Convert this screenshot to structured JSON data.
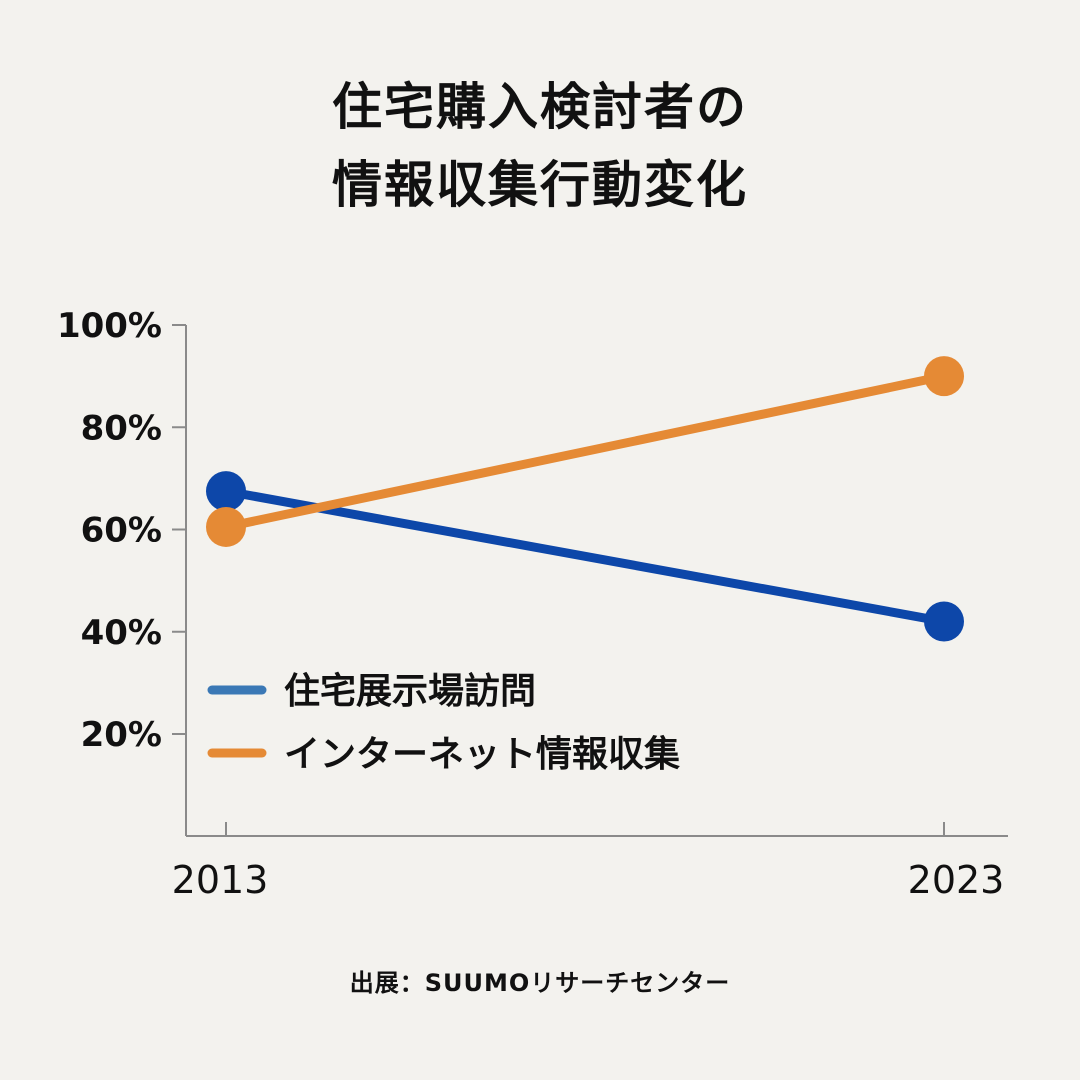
{
  "chart_data": {
    "type": "line",
    "title": [
      "住宅購入検討者の",
      "情報収集行動変化"
    ],
    "x": [
      "2013",
      "2023"
    ],
    "ylim": [
      0,
      100
    ],
    "yticks": [
      20,
      40,
      60,
      80,
      100
    ],
    "ytick_labels": [
      "20%",
      "40%",
      "60%",
      "80%",
      "100%"
    ],
    "series": [
      {
        "name": "住宅展示場訪問",
        "values": [
          67.5,
          42
        ],
        "color": "#0d47a9",
        "legend_color": "#3a78b5"
      },
      {
        "name": "インターネット情報収集",
        "values": [
          60.5,
          90
        ],
        "color": "#e58a35",
        "legend_color": "#e58a35"
      }
    ],
    "legend_placement": "bottom-left",
    "grid": false,
    "source": "出展：SUUMOリサーチセンター"
  }
}
